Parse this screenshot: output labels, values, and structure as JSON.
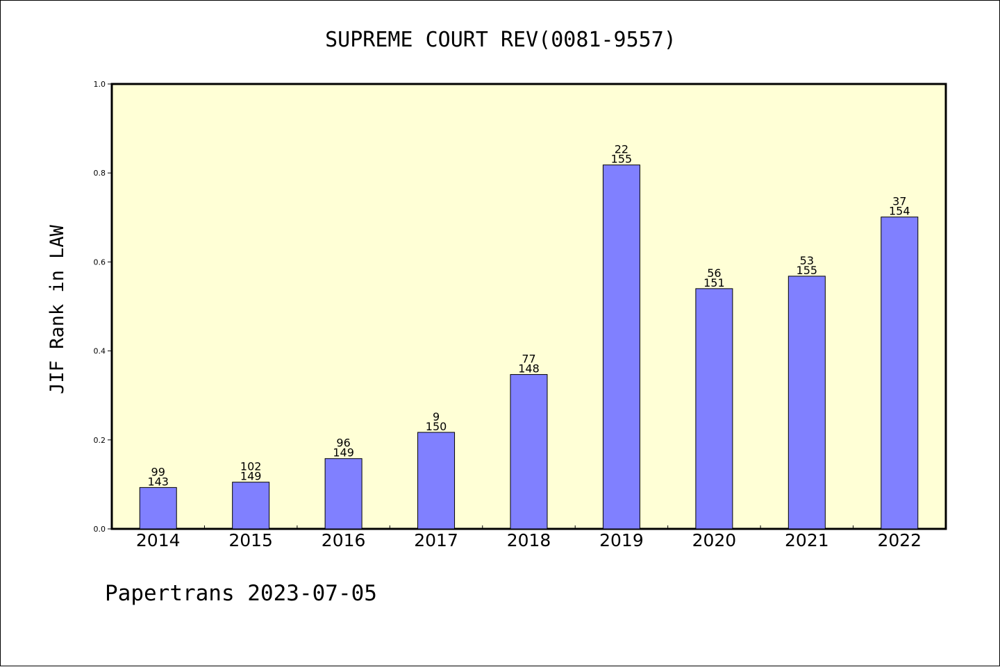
{
  "chart_data": {
    "type": "bar",
    "title": "SUPREME COURT REV(0081-9557)",
    "ylabel": "JIF Rank in LAW",
    "xlabel": "",
    "footer": "Papertrans 2023-07-05",
    "ylim": [
      0,
      1.0
    ],
    "yticks": [
      "0.0",
      "0.2",
      "0.4",
      "0.6",
      "0.8",
      "1.0"
    ],
    "ytick_values": [
      0,
      0.2,
      0.4,
      0.6,
      0.8,
      1.0
    ],
    "categories": [
      "2014",
      "2015",
      "2016",
      "2017",
      "2018",
      "2019",
      "2020",
      "2021",
      "2022"
    ],
    "values": [
      0.093,
      0.105,
      0.158,
      0.217,
      0.347,
      0.818,
      0.54,
      0.568,
      0.701
    ],
    "ranks": [
      "99",
      "102",
      "96",
      "9",
      "77",
      "22",
      "56",
      "53",
      "37"
    ],
    "totals": [
      "143",
      "149",
      "149",
      "150",
      "148",
      "155",
      "151",
      "155",
      "154"
    ],
    "grid": false,
    "colors": {
      "plot_background": "#ffffd6",
      "bar_fill": "#8080ff",
      "bar_stroke": "#000000",
      "axis": "#000000"
    }
  }
}
